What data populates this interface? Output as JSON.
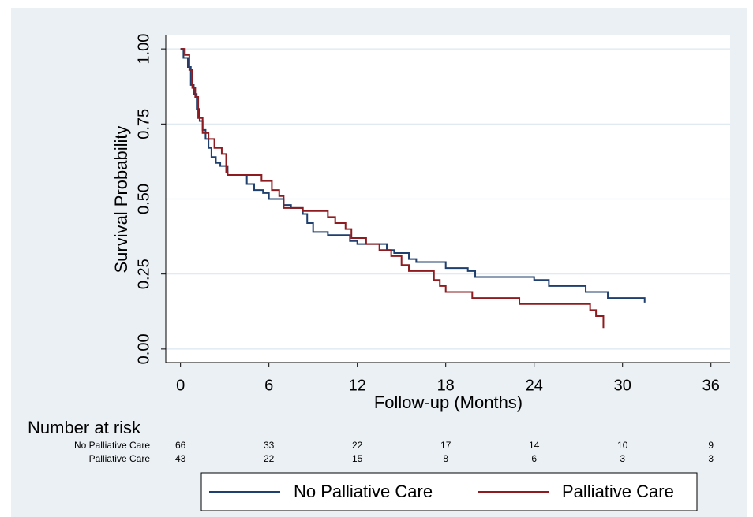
{
  "chart_data": {
    "type": "step",
    "y_label": "Survival Probability",
    "x_label": "Follow-up (Months)",
    "xlim": [
      -1,
      37.3
    ],
    "ylim": [
      -0.045,
      1.045
    ],
    "xticks": [
      0,
      6,
      12,
      18,
      24,
      30,
      36
    ],
    "yticks": [
      {
        "value": 0,
        "label": "0.00"
      },
      {
        "value": 0.25,
        "label": "0.25"
      },
      {
        "value": 0.5,
        "label": "0.50"
      },
      {
        "value": 0.75,
        "label": "0.75"
      },
      {
        "value": 1,
        "label": "1.00"
      }
    ],
    "grid": true,
    "series": [
      {
        "name": "No Palliative Care",
        "color": "#1f3f6e",
        "x": [
          0,
          0.2,
          0.5,
          0.7,
          0.9,
          1.1,
          1.3,
          1.5,
          1.7,
          1.9,
          2.1,
          2.4,
          2.7,
          3.2,
          4.0,
          4.5,
          5.0,
          5.6,
          6.0,
          7.0,
          7.5,
          8.3,
          8.6,
          9.0,
          10.0,
          11.5,
          12.0,
          14.0,
          14.5,
          15.5,
          16.0,
          18.0,
          19.5,
          20.0,
          24.0,
          25.0,
          27.5,
          29.0,
          31.5
        ],
        "values": [
          1.0,
          0.97,
          0.94,
          0.88,
          0.85,
          0.8,
          0.76,
          0.73,
          0.7,
          0.67,
          0.64,
          0.62,
          0.61,
          0.58,
          0.58,
          0.55,
          0.53,
          0.52,
          0.5,
          0.48,
          0.47,
          0.45,
          0.42,
          0.39,
          0.38,
          0.36,
          0.35,
          0.33,
          0.32,
          0.3,
          0.29,
          0.27,
          0.26,
          0.24,
          0.23,
          0.21,
          0.19,
          0.17,
          0.155
        ]
      },
      {
        "name": "Palliative Care",
        "color": "#8e1b1f",
        "x": [
          0,
          0.3,
          0.6,
          0.8,
          1.0,
          1.2,
          1.5,
          1.9,
          2.3,
          2.8,
          3.1,
          3.2,
          5.5,
          6.2,
          6.7,
          7.0,
          8.3,
          10.0,
          10.5,
          11.2,
          11.6,
          12.6,
          13.5,
          14.3,
          15.0,
          15.5,
          17.2,
          17.6,
          18.0,
          19.8,
          23.0,
          27.8,
          28.2,
          28.7
        ],
        "values": [
          1.0,
          0.98,
          0.93,
          0.87,
          0.84,
          0.77,
          0.72,
          0.7,
          0.67,
          0.65,
          0.59,
          0.58,
          0.56,
          0.53,
          0.51,
          0.47,
          0.46,
          0.44,
          0.42,
          0.4,
          0.37,
          0.35,
          0.33,
          0.31,
          0.28,
          0.26,
          0.23,
          0.21,
          0.19,
          0.17,
          0.15,
          0.13,
          0.11,
          0.07
        ]
      }
    ],
    "risk_table": {
      "title": "Number at risk",
      "rows": [
        {
          "name": "No Palliative Care",
          "values": [
            66,
            33,
            22,
            17,
            14,
            10,
            9
          ]
        },
        {
          "name": "Palliative Care",
          "values": [
            43,
            22,
            15,
            8,
            6,
            3,
            3
          ]
        }
      ]
    }
  }
}
